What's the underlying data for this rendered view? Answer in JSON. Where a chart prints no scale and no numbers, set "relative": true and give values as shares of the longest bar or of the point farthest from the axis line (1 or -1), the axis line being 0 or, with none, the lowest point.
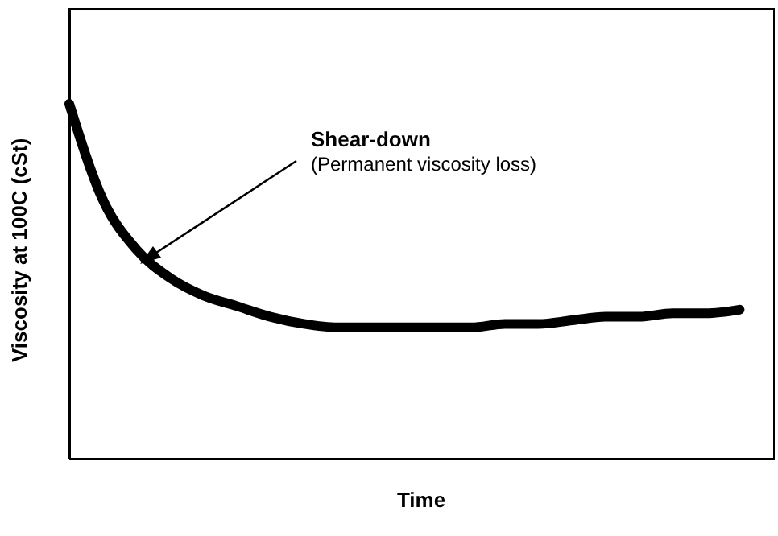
{
  "chart_data": {
    "type": "line",
    "relative": true,
    "xlabel": "Time",
    "ylabel": "Viscosity at 100C  (cSt)",
    "annotations": [
      "Shear-down",
      "(Permanent viscosity loss)"
    ],
    "categories": [
      null,
      null,
      null,
      null,
      null,
      null,
      null,
      null,
      null,
      null,
      null,
      null,
      null,
      null,
      null,
      null,
      null,
      null,
      null,
      null,
      null,
      null
    ],
    "series": [
      {
        "color": "#000000",
        "values": [
          1.0,
          0.73,
          0.59,
          0.51,
          0.46,
          0.43,
          0.4,
          0.38,
          0.37,
          0.37,
          0.37,
          0.37,
          0.37,
          0.38,
          0.38,
          0.39,
          0.4,
          0.4,
          0.41,
          0.41,
          0.42,
          null
        ]
      }
    ],
    "marker": "none",
    "line_style": "solid"
  }
}
